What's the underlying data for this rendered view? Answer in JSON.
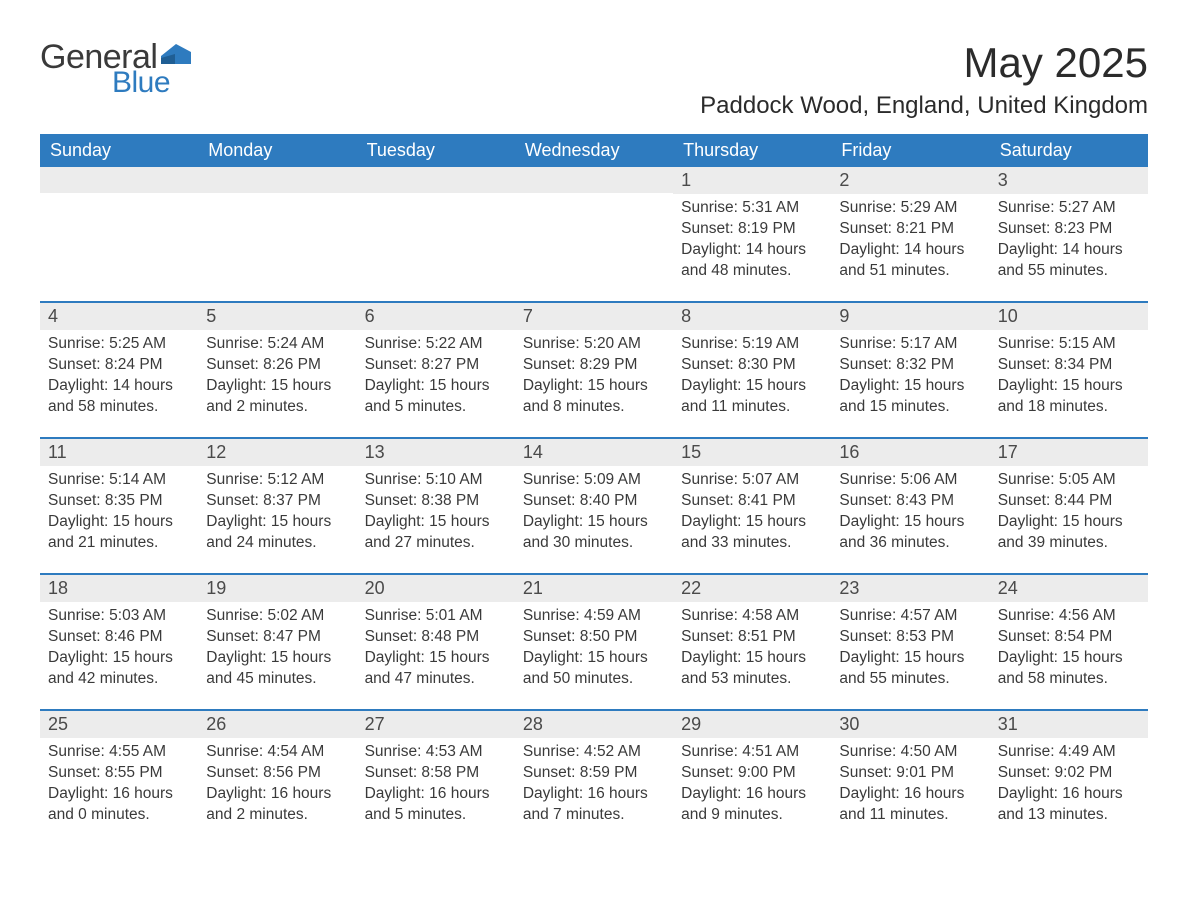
{
  "logo": {
    "text_general": "General",
    "text_blue": "Blue",
    "flag_color": "#2e7bbf"
  },
  "header": {
    "month_title": "May 2025",
    "location": "Paddock Wood, England, United Kingdom"
  },
  "styling": {
    "header_bg": "#2e7bbf",
    "header_text": "#ffffff",
    "daynum_bg": "#ececec",
    "week_divider": "#2e7bbf",
    "body_text": "#3a3a3a",
    "page_bg": "#ffffff",
    "title_fontsize": 42,
    "location_fontsize": 24,
    "weekday_fontsize": 18,
    "daynum_fontsize": 18,
    "content_fontsize": 15.5
  },
  "weekdays": [
    "Sunday",
    "Monday",
    "Tuesday",
    "Wednesday",
    "Thursday",
    "Friday",
    "Saturday"
  ],
  "weeks": [
    [
      {
        "empty": true
      },
      {
        "empty": true
      },
      {
        "empty": true
      },
      {
        "empty": true
      },
      {
        "num": "1",
        "sunrise": "Sunrise: 5:31 AM",
        "sunset": "Sunset: 8:19 PM",
        "daylight1": "Daylight: 14 hours",
        "daylight2": "and 48 minutes."
      },
      {
        "num": "2",
        "sunrise": "Sunrise: 5:29 AM",
        "sunset": "Sunset: 8:21 PM",
        "daylight1": "Daylight: 14 hours",
        "daylight2": "and 51 minutes."
      },
      {
        "num": "3",
        "sunrise": "Sunrise: 5:27 AM",
        "sunset": "Sunset: 8:23 PM",
        "daylight1": "Daylight: 14 hours",
        "daylight2": "and 55 minutes."
      }
    ],
    [
      {
        "num": "4",
        "sunrise": "Sunrise: 5:25 AM",
        "sunset": "Sunset: 8:24 PM",
        "daylight1": "Daylight: 14 hours",
        "daylight2": "and 58 minutes."
      },
      {
        "num": "5",
        "sunrise": "Sunrise: 5:24 AM",
        "sunset": "Sunset: 8:26 PM",
        "daylight1": "Daylight: 15 hours",
        "daylight2": "and 2 minutes."
      },
      {
        "num": "6",
        "sunrise": "Sunrise: 5:22 AM",
        "sunset": "Sunset: 8:27 PM",
        "daylight1": "Daylight: 15 hours",
        "daylight2": "and 5 minutes."
      },
      {
        "num": "7",
        "sunrise": "Sunrise: 5:20 AM",
        "sunset": "Sunset: 8:29 PM",
        "daylight1": "Daylight: 15 hours",
        "daylight2": "and 8 minutes."
      },
      {
        "num": "8",
        "sunrise": "Sunrise: 5:19 AM",
        "sunset": "Sunset: 8:30 PM",
        "daylight1": "Daylight: 15 hours",
        "daylight2": "and 11 minutes."
      },
      {
        "num": "9",
        "sunrise": "Sunrise: 5:17 AM",
        "sunset": "Sunset: 8:32 PM",
        "daylight1": "Daylight: 15 hours",
        "daylight2": "and 15 minutes."
      },
      {
        "num": "10",
        "sunrise": "Sunrise: 5:15 AM",
        "sunset": "Sunset: 8:34 PM",
        "daylight1": "Daylight: 15 hours",
        "daylight2": "and 18 minutes."
      }
    ],
    [
      {
        "num": "11",
        "sunrise": "Sunrise: 5:14 AM",
        "sunset": "Sunset: 8:35 PM",
        "daylight1": "Daylight: 15 hours",
        "daylight2": "and 21 minutes."
      },
      {
        "num": "12",
        "sunrise": "Sunrise: 5:12 AM",
        "sunset": "Sunset: 8:37 PM",
        "daylight1": "Daylight: 15 hours",
        "daylight2": "and 24 minutes."
      },
      {
        "num": "13",
        "sunrise": "Sunrise: 5:10 AM",
        "sunset": "Sunset: 8:38 PM",
        "daylight1": "Daylight: 15 hours",
        "daylight2": "and 27 minutes."
      },
      {
        "num": "14",
        "sunrise": "Sunrise: 5:09 AM",
        "sunset": "Sunset: 8:40 PM",
        "daylight1": "Daylight: 15 hours",
        "daylight2": "and 30 minutes."
      },
      {
        "num": "15",
        "sunrise": "Sunrise: 5:07 AM",
        "sunset": "Sunset: 8:41 PM",
        "daylight1": "Daylight: 15 hours",
        "daylight2": "and 33 minutes."
      },
      {
        "num": "16",
        "sunrise": "Sunrise: 5:06 AM",
        "sunset": "Sunset: 8:43 PM",
        "daylight1": "Daylight: 15 hours",
        "daylight2": "and 36 minutes."
      },
      {
        "num": "17",
        "sunrise": "Sunrise: 5:05 AM",
        "sunset": "Sunset: 8:44 PM",
        "daylight1": "Daylight: 15 hours",
        "daylight2": "and 39 minutes."
      }
    ],
    [
      {
        "num": "18",
        "sunrise": "Sunrise: 5:03 AM",
        "sunset": "Sunset: 8:46 PM",
        "daylight1": "Daylight: 15 hours",
        "daylight2": "and 42 minutes."
      },
      {
        "num": "19",
        "sunrise": "Sunrise: 5:02 AM",
        "sunset": "Sunset: 8:47 PM",
        "daylight1": "Daylight: 15 hours",
        "daylight2": "and 45 minutes."
      },
      {
        "num": "20",
        "sunrise": "Sunrise: 5:01 AM",
        "sunset": "Sunset: 8:48 PM",
        "daylight1": "Daylight: 15 hours",
        "daylight2": "and 47 minutes."
      },
      {
        "num": "21",
        "sunrise": "Sunrise: 4:59 AM",
        "sunset": "Sunset: 8:50 PM",
        "daylight1": "Daylight: 15 hours",
        "daylight2": "and 50 minutes."
      },
      {
        "num": "22",
        "sunrise": "Sunrise: 4:58 AM",
        "sunset": "Sunset: 8:51 PM",
        "daylight1": "Daylight: 15 hours",
        "daylight2": "and 53 minutes."
      },
      {
        "num": "23",
        "sunrise": "Sunrise: 4:57 AM",
        "sunset": "Sunset: 8:53 PM",
        "daylight1": "Daylight: 15 hours",
        "daylight2": "and 55 minutes."
      },
      {
        "num": "24",
        "sunrise": "Sunrise: 4:56 AM",
        "sunset": "Sunset: 8:54 PM",
        "daylight1": "Daylight: 15 hours",
        "daylight2": "and 58 minutes."
      }
    ],
    [
      {
        "num": "25",
        "sunrise": "Sunrise: 4:55 AM",
        "sunset": "Sunset: 8:55 PM",
        "daylight1": "Daylight: 16 hours",
        "daylight2": "and 0 minutes."
      },
      {
        "num": "26",
        "sunrise": "Sunrise: 4:54 AM",
        "sunset": "Sunset: 8:56 PM",
        "daylight1": "Daylight: 16 hours",
        "daylight2": "and 2 minutes."
      },
      {
        "num": "27",
        "sunrise": "Sunrise: 4:53 AM",
        "sunset": "Sunset: 8:58 PM",
        "daylight1": "Daylight: 16 hours",
        "daylight2": "and 5 minutes."
      },
      {
        "num": "28",
        "sunrise": "Sunrise: 4:52 AM",
        "sunset": "Sunset: 8:59 PM",
        "daylight1": "Daylight: 16 hours",
        "daylight2": "and 7 minutes."
      },
      {
        "num": "29",
        "sunrise": "Sunrise: 4:51 AM",
        "sunset": "Sunset: 9:00 PM",
        "daylight1": "Daylight: 16 hours",
        "daylight2": "and 9 minutes."
      },
      {
        "num": "30",
        "sunrise": "Sunrise: 4:50 AM",
        "sunset": "Sunset: 9:01 PM",
        "daylight1": "Daylight: 16 hours",
        "daylight2": "and 11 minutes."
      },
      {
        "num": "31",
        "sunrise": "Sunrise: 4:49 AM",
        "sunset": "Sunset: 9:02 PM",
        "daylight1": "Daylight: 16 hours",
        "daylight2": "and 13 minutes."
      }
    ]
  ]
}
